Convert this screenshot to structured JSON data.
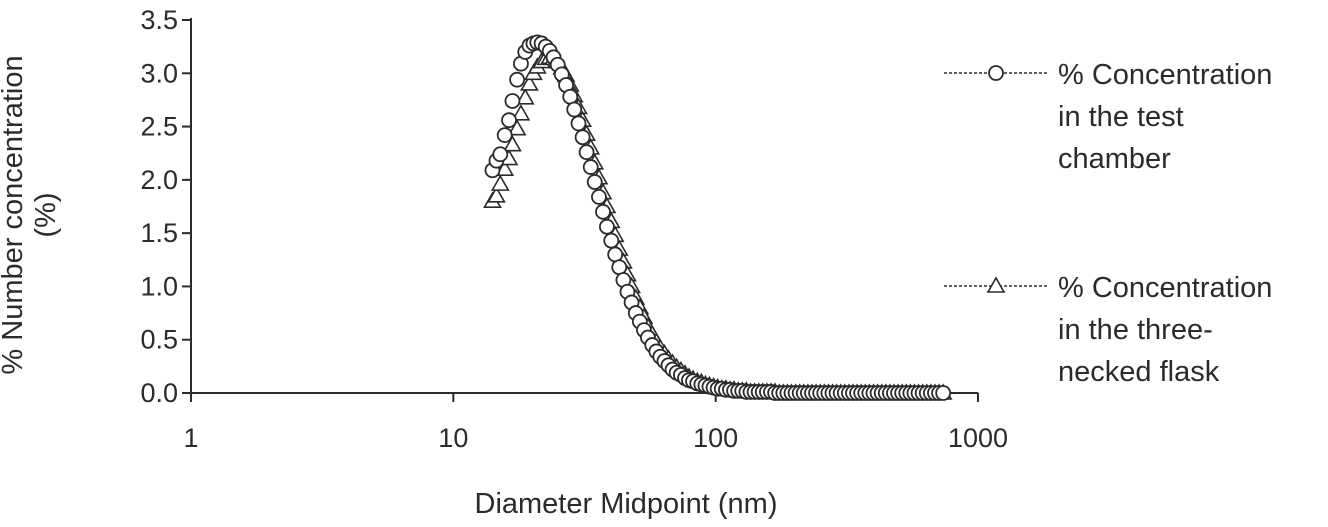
{
  "chart_data": {
    "type": "scatter",
    "xlabel": "Diameter Midpoint (nm)",
    "ylabel": "% Number concentration (%)",
    "ylabel_lines": [
      "% Number concentration",
      "(%)"
    ],
    "x_scale": "log",
    "xlim": [
      1,
      1000
    ],
    "ylim": [
      0,
      3.5
    ],
    "x_ticks": [
      1,
      10,
      100,
      1000
    ],
    "x_tick_labels": [
      "1",
      "10",
      "100",
      "1000"
    ],
    "y_ticks": [
      0,
      0.5,
      1,
      1.5,
      2,
      2.5,
      3,
      3.5
    ],
    "y_tick_labels": [
      "0.0",
      "0.5",
      "1.0",
      "1.5",
      "2.0",
      "2.5",
      "3.0",
      "3.5"
    ],
    "grid": false,
    "legend_position": "right",
    "x": [
      14.1,
      14.6,
      15.1,
      15.7,
      16.3,
      16.8,
      17.5,
      18.1,
      18.8,
      19.5,
      20.2,
      20.9,
      21.7,
      22.5,
      23.3,
      24.1,
      25.0,
      25.9,
      26.9,
      27.9,
      28.9,
      30.0,
      31.1,
      32.2,
      33.4,
      34.6,
      35.9,
      37.2,
      38.5,
      40.0,
      41.4,
      42.9,
      44.5,
      46.1,
      47.8,
      49.6,
      51.4,
      53.3,
      55.2,
      57.3,
      59.4,
      61.5,
      63.8,
      66.1,
      68.5,
      71.0,
      73.7,
      76.4,
      79.1,
      82.0,
      85.1,
      88.2,
      91.4,
      94.7,
      98.2,
      101.8,
      105.5,
      109.4,
      113.4,
      117.6,
      121.9,
      126.3,
      131.0,
      135.8,
      140.7,
      145.9,
      151.2,
      156.8,
      162.5,
      168.5,
      174.7,
      181.1,
      187.7,
      194.6,
      201.7,
      209.1,
      216.7,
      224.7,
      232.9,
      241.4,
      250.3,
      259.5,
      269.0,
      278.8,
      289.0,
      299.6,
      310.6,
      322.0,
      333.8,
      346.0,
      358.7,
      371.8,
      385.4,
      399.5,
      414.2,
      429.4,
      445.1,
      461.4,
      478.3,
      495.8,
      514.0,
      532.8,
      552.3,
      572.5,
      593.5,
      615.3,
      637.8,
      661.2,
      685.4,
      710.5,
      736.5
    ],
    "series": [
      {
        "name": "% Concentration in the test chamber",
        "legend_lines": [
          "% Concentration",
          "in the test",
          "chamber"
        ],
        "marker": "circle",
        "values": [
          2.09,
          2.18,
          2.24,
          2.42,
          2.56,
          2.74,
          2.94,
          3.09,
          3.2,
          3.26,
          3.28,
          3.29,
          3.28,
          3.25,
          3.21,
          3.15,
          3.08,
          2.99,
          2.89,
          2.78,
          2.66,
          2.53,
          2.4,
          2.26,
          2.12,
          1.98,
          1.84,
          1.7,
          1.56,
          1.43,
          1.3,
          1.18,
          1.06,
          0.95,
          0.85,
          0.75,
          0.67,
          0.59,
          0.52,
          0.45,
          0.39,
          0.34,
          0.3,
          0.26,
          0.22,
          0.19,
          0.17,
          0.14,
          0.12,
          0.11,
          0.09,
          0.08,
          0.07,
          0.06,
          0.05,
          0.04,
          0.04,
          0.03,
          0.03,
          0.02,
          0.02,
          0.02,
          0.01,
          0.01,
          0.01,
          0.01,
          0.01,
          0.01,
          0.01,
          0.0,
          0.0,
          0.0,
          0.0,
          0.0,
          0.0,
          0.0,
          0.0,
          0.0,
          0.0,
          0.0,
          0.0,
          0.0,
          0.0,
          0.0,
          0.0,
          0.0,
          0.0,
          0.0,
          0.0,
          0.0,
          0.0,
          0.0,
          0.0,
          0.0,
          0.0,
          0.0,
          0.0,
          0.0,
          0.0,
          0.0,
          0.0,
          0.0,
          0.0,
          0.0,
          0.0,
          0.0,
          0.0,
          0.0,
          0.0,
          0.0,
          0.0
        ]
      },
      {
        "name": "% Concentration in the three-necked flask",
        "legend_lines": [
          "% Concentration",
          "in the three-",
          "necked flask"
        ],
        "marker": "triangle",
        "values": [
          1.8,
          1.85,
          1.96,
          2.1,
          2.2,
          2.33,
          2.48,
          2.62,
          2.77,
          2.9,
          3.0,
          3.06,
          3.11,
          3.14,
          3.15,
          3.14,
          3.11,
          3.05,
          2.98,
          2.89,
          2.79,
          2.68,
          2.56,
          2.43,
          2.3,
          2.16,
          2.02,
          1.88,
          1.75,
          1.61,
          1.48,
          1.35,
          1.23,
          1.11,
          1.0,
          0.89,
          0.8,
          0.71,
          0.62,
          0.55,
          0.48,
          0.42,
          0.37,
          0.32,
          0.28,
          0.24,
          0.21,
          0.18,
          0.15,
          0.13,
          0.11,
          0.1,
          0.08,
          0.07,
          0.06,
          0.05,
          0.04,
          0.04,
          0.03,
          0.03,
          0.02,
          0.02,
          0.02,
          0.01,
          0.01,
          0.01,
          0.01,
          0.01,
          0.01,
          0.01,
          0.0,
          0.0,
          0.0,
          0.0,
          0.0,
          0.0,
          0.0,
          0.0,
          0.0,
          0.0,
          0.0,
          0.0,
          0.0,
          0.0,
          0.0,
          0.0,
          0.0,
          0.0,
          0.0,
          0.0,
          0.0,
          0.0,
          0.0,
          0.0,
          0.0,
          0.0,
          0.0,
          0.0,
          0.0,
          0.0,
          0.0,
          0.0,
          0.0,
          0.0,
          0.0,
          0.0,
          0.0,
          0.0,
          0.0,
          0.0,
          0.0
        ]
      }
    ]
  },
  "colors": {
    "marker_stroke": "#2b2b2b",
    "marker_fill": "#ffffff",
    "axis": "#2b2b2b"
  }
}
